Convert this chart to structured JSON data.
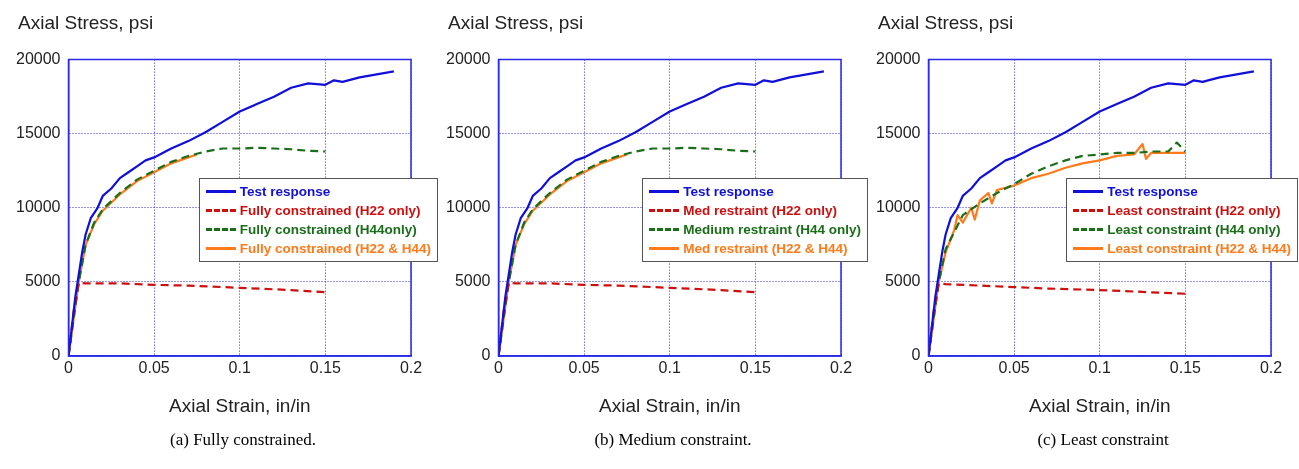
{
  "chart_data": [
    {
      "type": "line",
      "title": "(a) Fully constrained.",
      "xlabel": "Axial Strain, in/in",
      "ylabel": "Axial Stress, psi",
      "xlim": [
        0,
        0.2
      ],
      "ylim": [
        0,
        20000
      ],
      "xticks": [
        0,
        0.05,
        0.1,
        0.15,
        0.2
      ],
      "yticks": [
        0,
        5000,
        10000,
        15000,
        20000
      ],
      "grid": true,
      "legend": "right",
      "marker": "none",
      "series": [
        {
          "name": "Test response",
          "color": "#1010d8",
          "line_style": "solid",
          "x": [
            0,
            0.002,
            0.004,
            0.006,
            0.008,
            0.01,
            0.013,
            0.017,
            0.02,
            0.025,
            0.03,
            0.035,
            0.04,
            0.045,
            0.05,
            0.06,
            0.07,
            0.08,
            0.09,
            0.1,
            0.11,
            0.12,
            0.13,
            0.14,
            0.15,
            0.155,
            0.16,
            0.17,
            0.18,
            0.19
          ],
          "values": [
            0,
            2000,
            4000,
            5500,
            7000,
            8200,
            9300,
            10000,
            10800,
            11300,
            12000,
            12400,
            12800,
            13200,
            13400,
            14000,
            14500,
            15100,
            15800,
            16500,
            17000,
            17500,
            18100,
            18400,
            18300,
            18600,
            18500,
            18800,
            19000,
            19200
          ]
        },
        {
          "name": "Fully constrained (H22 only)",
          "color": "#cc1010",
          "line_style": "dashed",
          "x": [
            0,
            0.003,
            0.006,
            0.01,
            0.03,
            0.05,
            0.07,
            0.1,
            0.13,
            0.15
          ],
          "values": [
            0,
            3000,
            4950,
            4900,
            4900,
            4800,
            4750,
            4600,
            4450,
            4300
          ]
        },
        {
          "name": "Fully constrained (H44only)",
          "color": "#1a6e1a",
          "line_style": "dashed",
          "x": [
            0,
            0.003,
            0.006,
            0.01,
            0.015,
            0.02,
            0.03,
            0.04,
            0.05,
            0.06,
            0.07,
            0.08,
            0.09,
            0.1,
            0.11,
            0.12,
            0.13,
            0.14,
            0.15
          ],
          "values": [
            0,
            2500,
            5000,
            7500,
            9000,
            9900,
            11000,
            11900,
            12500,
            13100,
            13500,
            13800,
            14000,
            14000,
            14050,
            14000,
            13950,
            13850,
            13800
          ]
        },
        {
          "name": "Fully constrained (H22 & H44)",
          "color": "#ff7a1a",
          "line_style": "solid",
          "x": [
            0,
            0.003,
            0.006,
            0.01,
            0.015,
            0.02,
            0.03,
            0.04,
            0.05,
            0.06,
            0.07,
            0.075
          ],
          "values": [
            0,
            2500,
            5000,
            7500,
            8900,
            9800,
            10900,
            11800,
            12400,
            13000,
            13400,
            13600
          ]
        }
      ]
    },
    {
      "type": "line",
      "title": "(b) Medium constraint.",
      "xlabel": "Axial Strain, in/in",
      "ylabel": "Axial Stress, psi",
      "xlim": [
        0,
        0.2
      ],
      "ylim": [
        0,
        20000
      ],
      "xticks": [
        0,
        0.05,
        0.1,
        0.15,
        0.2
      ],
      "yticks": [
        0,
        5000,
        10000,
        15000,
        20000
      ],
      "grid": true,
      "legend": "right",
      "marker": "none",
      "series": [
        {
          "name": "Test response",
          "color": "#1010d8",
          "line_style": "solid",
          "x": [
            0,
            0.002,
            0.004,
            0.006,
            0.008,
            0.01,
            0.013,
            0.017,
            0.02,
            0.025,
            0.03,
            0.035,
            0.04,
            0.045,
            0.05,
            0.06,
            0.07,
            0.08,
            0.09,
            0.1,
            0.11,
            0.12,
            0.13,
            0.14,
            0.15,
            0.155,
            0.16,
            0.17,
            0.18,
            0.19
          ],
          "values": [
            0,
            2000,
            4000,
            5500,
            7000,
            8200,
            9300,
            10000,
            10800,
            11300,
            12000,
            12400,
            12800,
            13200,
            13400,
            14000,
            14500,
            15100,
            15800,
            16500,
            17000,
            17500,
            18100,
            18400,
            18300,
            18600,
            18500,
            18800,
            19000,
            19200
          ]
        },
        {
          "name": "Med restraint (H22 only)",
          "color": "#cc1010",
          "line_style": "dashed",
          "x": [
            0,
            0.003,
            0.006,
            0.01,
            0.03,
            0.05,
            0.07,
            0.1,
            0.13,
            0.15
          ],
          "values": [
            0,
            3000,
            4950,
            4900,
            4900,
            4800,
            4750,
            4600,
            4450,
            4300
          ]
        },
        {
          "name": "Medium restraint (H44 only)",
          "color": "#1a6e1a",
          "line_style": "dashed",
          "x": [
            0,
            0.003,
            0.006,
            0.01,
            0.015,
            0.02,
            0.03,
            0.04,
            0.05,
            0.06,
            0.07,
            0.08,
            0.09,
            0.1,
            0.11,
            0.12,
            0.13,
            0.14,
            0.15
          ],
          "values": [
            0,
            2500,
            5000,
            7500,
            9000,
            9900,
            11000,
            11900,
            12500,
            13100,
            13500,
            13800,
            14000,
            14000,
            14050,
            14000,
            13950,
            13850,
            13800
          ]
        },
        {
          "name": "Med restraint (H22 & H44)",
          "color": "#ff7a1a",
          "line_style": "solid",
          "x": [
            0,
            0.003,
            0.006,
            0.01,
            0.015,
            0.02,
            0.03,
            0.04,
            0.05,
            0.06,
            0.07,
            0.075
          ],
          "values": [
            0,
            2500,
            5000,
            7500,
            8900,
            9800,
            10900,
            11800,
            12400,
            13000,
            13400,
            13600
          ]
        }
      ]
    },
    {
      "type": "line",
      "title": "(c) Least constraint",
      "xlabel": "Axial Strain, in/in",
      "ylabel": "Axial Stress, psi",
      "xlim": [
        0,
        0.2
      ],
      "ylim": [
        0,
        20000
      ],
      "xticks": [
        0,
        0.05,
        0.1,
        0.15,
        0.2
      ],
      "yticks": [
        0,
        5000,
        10000,
        15000,
        20000
      ],
      "grid": true,
      "legend": "right",
      "marker": "none",
      "series": [
        {
          "name": "Test response",
          "color": "#1010d8",
          "line_style": "solid",
          "x": [
            0,
            0.002,
            0.004,
            0.006,
            0.008,
            0.01,
            0.013,
            0.017,
            0.02,
            0.025,
            0.03,
            0.035,
            0.04,
            0.045,
            0.05,
            0.06,
            0.07,
            0.08,
            0.09,
            0.1,
            0.11,
            0.12,
            0.13,
            0.14,
            0.15,
            0.155,
            0.16,
            0.17,
            0.18,
            0.19
          ],
          "values": [
            0,
            2000,
            4000,
            5500,
            7000,
            8200,
            9300,
            10000,
            10800,
            11300,
            12000,
            12400,
            12800,
            13200,
            13400,
            14000,
            14500,
            15100,
            15800,
            16500,
            17000,
            17500,
            18100,
            18400,
            18300,
            18600,
            18500,
            18800,
            19000,
            19200
          ]
        },
        {
          "name": "Least constraint (H22 only)",
          "color": "#cc1010",
          "line_style": "dashed",
          "x": [
            0,
            0.003,
            0.006,
            0.01,
            0.03,
            0.05,
            0.07,
            0.1,
            0.13,
            0.15
          ],
          "values": [
            0,
            3000,
            4900,
            4850,
            4750,
            4650,
            4550,
            4450,
            4300,
            4200
          ]
        },
        {
          "name": "Least constraint (H44 only)",
          "color": "#1a6e1a",
          "line_style": "dashed",
          "x": [
            0,
            0.003,
            0.006,
            0.01,
            0.02,
            0.03,
            0.04,
            0.05,
            0.06,
            0.07,
            0.08,
            0.09,
            0.1,
            0.11,
            0.12,
            0.13,
            0.14,
            0.145,
            0.15
          ],
          "values": [
            0,
            2500,
            5000,
            7200,
            9500,
            10300,
            11000,
            11600,
            12300,
            12800,
            13200,
            13500,
            13600,
            13700,
            13700,
            13800,
            13800,
            14400,
            13800
          ]
        },
        {
          "name": "Least constraint (H22 & H44)",
          "color": "#ff7a1a",
          "line_style": "solid",
          "x": [
            0,
            0.003,
            0.006,
            0.01,
            0.015,
            0.017,
            0.02,
            0.025,
            0.027,
            0.03,
            0.035,
            0.037,
            0.04,
            0.05,
            0.06,
            0.07,
            0.08,
            0.09,
            0.1,
            0.11,
            0.12,
            0.125,
            0.127,
            0.13,
            0.14,
            0.15
          ],
          "values": [
            0,
            2500,
            5000,
            7000,
            8500,
            9500,
            9000,
            10000,
            9200,
            10500,
            11000,
            10300,
            11200,
            11500,
            12000,
            12300,
            12700,
            13000,
            13200,
            13500,
            13600,
            14300,
            13300,
            13700,
            13700,
            13700
          ]
        }
      ]
    }
  ]
}
